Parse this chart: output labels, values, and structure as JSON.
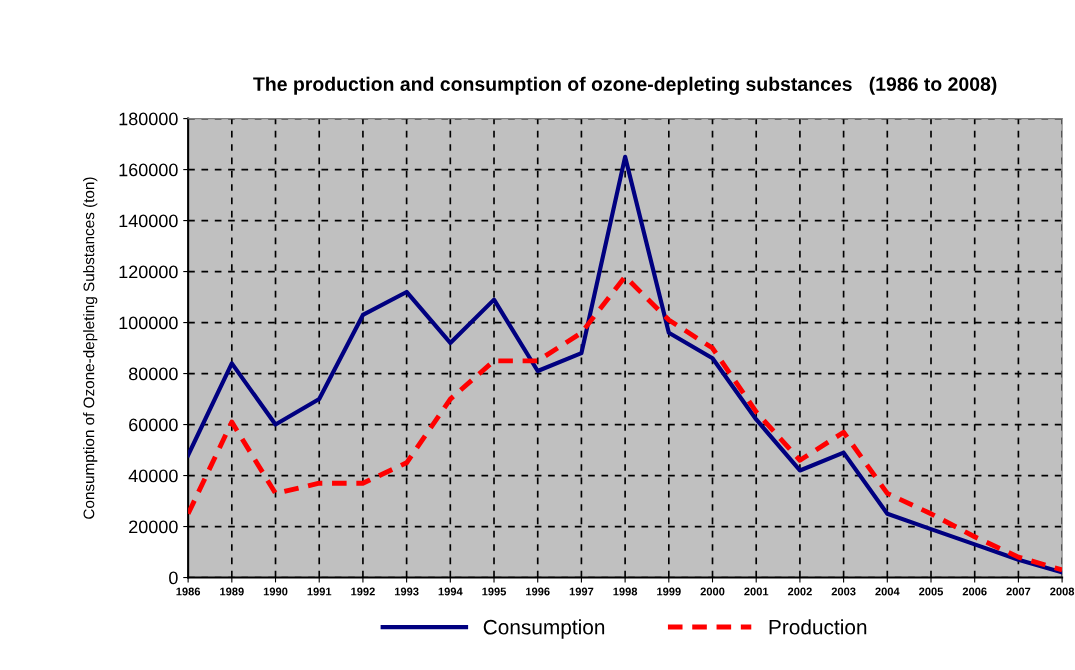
{
  "chart_data": {
    "type": "line",
    "title": "The production and consumption of ozone-depleting substances   (1986 to 2008)",
    "ylabel": "Consumption of Ozone-depleting Substances (ton)",
    "categories": [
      "1986",
      "1989",
      "1990",
      "1991",
      "1992",
      "1993",
      "1994",
      "1995",
      "1996",
      "1997",
      "1998",
      "1999",
      "2000",
      "2001",
      "2002",
      "2003",
      "2004",
      "2005",
      "2006",
      "2007",
      "2008"
    ],
    "series": [
      {
        "name": "Consumption",
        "color": "#000080",
        "line_style": "solid",
        "values": [
          48000,
          84000,
          60000,
          70000,
          103000,
          112000,
          92000,
          109000,
          81000,
          88000,
          165000,
          96000,
          86000,
          62000,
          42000,
          49000,
          25000,
          19000,
          13000,
          7000,
          2000
        ]
      },
      {
        "name": "Production",
        "color": "#ff0000",
        "line_style": "dashed",
        "values": [
          25000,
          61000,
          33000,
          37000,
          37000,
          45000,
          70000,
          85000,
          85000,
          96000,
          118000,
          101000,
          90000,
          65000,
          46000,
          57000,
          33000,
          25000,
          16000,
          8000,
          3000
        ]
      }
    ],
    "ylim": [
      0,
      180000
    ],
    "yticks": [
      0,
      20000,
      40000,
      60000,
      80000,
      100000,
      120000,
      140000,
      160000,
      180000
    ],
    "grid": true,
    "legend": "bottom",
    "marker": "none"
  }
}
